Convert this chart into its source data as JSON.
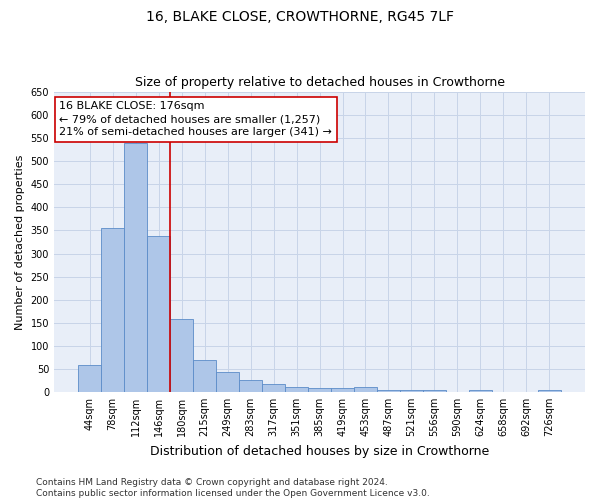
{
  "title": "16, BLAKE CLOSE, CROWTHORNE, RG45 7LF",
  "subtitle": "Size of property relative to detached houses in Crowthorne",
  "xlabel": "Distribution of detached houses by size in Crowthorne",
  "ylabel": "Number of detached properties",
  "categories": [
    "44sqm",
    "78sqm",
    "112sqm",
    "146sqm",
    "180sqm",
    "215sqm",
    "249sqm",
    "283sqm",
    "317sqm",
    "351sqm",
    "385sqm",
    "419sqm",
    "453sqm",
    "487sqm",
    "521sqm",
    "556sqm",
    "590sqm",
    "624sqm",
    "658sqm",
    "692sqm",
    "726sqm"
  ],
  "values": [
    58,
    355,
    540,
    338,
    157,
    70,
    43,
    25,
    17,
    10,
    9,
    9,
    10,
    5,
    5,
    5,
    0,
    5,
    0,
    0,
    5
  ],
  "bar_color": "#aec6e8",
  "bar_edge_color": "#5b8cc8",
  "vline_color": "#cc0000",
  "annotation_line1": "16 BLAKE CLOSE: 176sqm",
  "annotation_line2": "← 79% of detached houses are smaller (1,257)",
  "annotation_line3": "21% of semi-detached houses are larger (341) →",
  "annotation_box_color": "#ffffff",
  "annotation_box_edge": "#cc0000",
  "ylim": [
    0,
    650
  ],
  "yticks": [
    0,
    50,
    100,
    150,
    200,
    250,
    300,
    350,
    400,
    450,
    500,
    550,
    600,
    650
  ],
  "grid_color": "#c8d4e8",
  "background_color": "#e8eef8",
  "footer_line1": "Contains HM Land Registry data © Crown copyright and database right 2024.",
  "footer_line2": "Contains public sector information licensed under the Open Government Licence v3.0.",
  "title_fontsize": 10,
  "subtitle_fontsize": 9,
  "xlabel_fontsize": 9,
  "ylabel_fontsize": 8,
  "tick_fontsize": 7,
  "annot_fontsize": 8,
  "footer_fontsize": 6.5
}
